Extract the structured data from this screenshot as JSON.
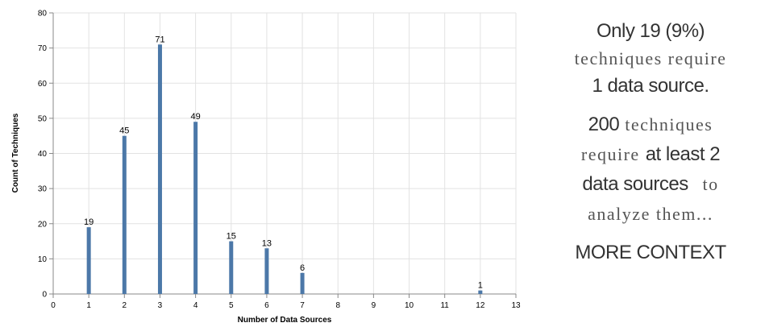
{
  "chart_data": {
    "type": "bar",
    "x": [
      1,
      2,
      3,
      4,
      5,
      6,
      7,
      12
    ],
    "values": [
      19,
      45,
      71,
      49,
      15,
      13,
      6,
      1
    ],
    "data_labels": [
      "19",
      "45",
      "71",
      "49",
      "15",
      "13",
      "6",
      "1"
    ],
    "xlabel": "Number of Data Sources",
    "ylabel": "Count of Techniques",
    "xlim": [
      0,
      13
    ],
    "ylim": [
      0,
      80
    ],
    "x_ticks": [
      "0",
      "1",
      "2",
      "3",
      "4",
      "5",
      "6",
      "7",
      "8",
      "9",
      "10",
      "11",
      "12",
      "13"
    ],
    "y_ticks": [
      "0",
      "10",
      "20",
      "30",
      "40",
      "50",
      "60",
      "70",
      "80"
    ],
    "grid": true,
    "bar_color": "#4c78a8"
  },
  "panel": {
    "l1": "Only 19 (9%)",
    "l2": "techniques require",
    "l3": "1 data source.",
    "l4a": "200",
    "l4b": " techniques",
    "l5a": "require ",
    "l5b": "at least 2",
    "l6a": "data sources",
    "l6b": "to",
    "l7": "analyze them...",
    "more": "MORE CONTEXT"
  }
}
